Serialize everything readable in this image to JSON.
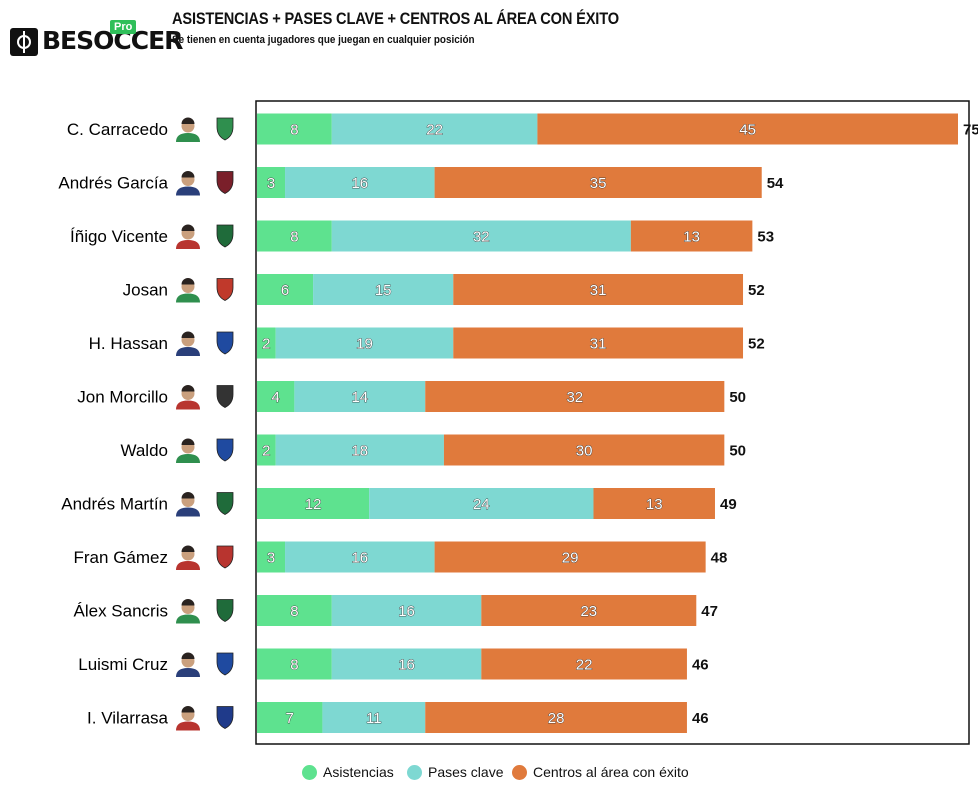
{
  "header": {
    "brand": "BESOCCER",
    "brand_badge": "Pro",
    "title": "ASISTENCIAS + PASES CLAVE + CENTROS AL ÁREA CON ÉXITO",
    "subtitle": "Se tienen en cuenta jugadores que juegan en cualquier posición"
  },
  "colors": {
    "asistencias": "#5ee28f",
    "pases_clave": "#7ed8d2",
    "centros": "#e07a3c"
  },
  "chart_data": {
    "type": "bar",
    "orientation": "horizontal",
    "stacked": true,
    "categories": [
      "C. Carracedo",
      "Andrés García",
      "Íñigo Vicente",
      "Josan",
      "H. Hassan",
      "Jon Morcillo",
      "Waldo",
      "Andrés Martín",
      "Fran Gámez",
      "Álex Sancris",
      "Luismi Cruz",
      "I. Vilarrasa"
    ],
    "series": [
      {
        "name": "Asistencias",
        "values": [
          8,
          3,
          8,
          6,
          2,
          4,
          2,
          12,
          3,
          8,
          8,
          7
        ]
      },
      {
        "name": "Pases clave",
        "values": [
          22,
          16,
          32,
          15,
          19,
          14,
          18,
          24,
          16,
          16,
          16,
          11
        ]
      },
      {
        "name": "Centros al área con éxito",
        "values": [
          45,
          35,
          13,
          31,
          31,
          32,
          30,
          13,
          29,
          23,
          22,
          28
        ]
      }
    ],
    "totals": [
      75,
      54,
      53,
      52,
      52,
      50,
      50,
      49,
      48,
      47,
      46,
      46
    ],
    "xlim": [
      0,
      75
    ],
    "legend_position": "bottom",
    "grid": false
  },
  "legend": [
    {
      "label": "Asistencias"
    },
    {
      "label": "Pases clave"
    },
    {
      "label": "Centros al área con éxito"
    }
  ]
}
